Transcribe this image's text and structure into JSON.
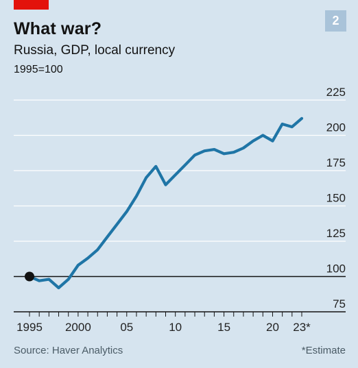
{
  "header": {
    "title": "What war?",
    "subtitle": "Russia, GDP, local currency",
    "index_note": "1995=100",
    "badge": "2"
  },
  "footer": {
    "source": "Source: Haver Analytics",
    "footnote": "*Estimate"
  },
  "colors": {
    "line": "#1f75a6",
    "background": "#d6e4ef",
    "accent_red": "#e3120b",
    "baseline": "#121212",
    "grid": "#ffffff"
  },
  "chart_data": {
    "type": "line",
    "title": "What war?",
    "subtitle": "Russia, GDP, local currency",
    "ylabel": "1995=100",
    "xlim": [
      1995,
      2023
    ],
    "ylim": [
      75,
      225
    ],
    "y_ticks": [
      75,
      100,
      125,
      150,
      175,
      200,
      225
    ],
    "y_tick_labels": [
      "75",
      "100",
      "125",
      "150",
      "175",
      "200",
      "225"
    ],
    "x_ticks": [
      1995,
      2000,
      2005,
      2010,
      2015,
      2020,
      2023
    ],
    "x_tick_labels": [
      "1995",
      "2000",
      "05",
      "10",
      "15",
      "20",
      "23*"
    ],
    "grid": "horizontal",
    "baseline_value": 100,
    "start_marker": [
      1995,
      100
    ],
    "x": [
      1995,
      1996,
      1997,
      1998,
      1999,
      2000,
      2001,
      2002,
      2003,
      2004,
      2005,
      2006,
      2007,
      2008,
      2009,
      2010,
      2011,
      2012,
      2013,
      2014,
      2015,
      2016,
      2017,
      2018,
      2019,
      2020,
      2021,
      2022,
      2023
    ],
    "series": [
      {
        "values": [
          100,
          97,
          98,
          92,
          98,
          108,
          113,
          119,
          128,
          137,
          146,
          157,
          170,
          178,
          165,
          172,
          179,
          186,
          189,
          190,
          187,
          188,
          191,
          196,
          200,
          196,
          208,
          206,
          212
        ]
      }
    ]
  }
}
